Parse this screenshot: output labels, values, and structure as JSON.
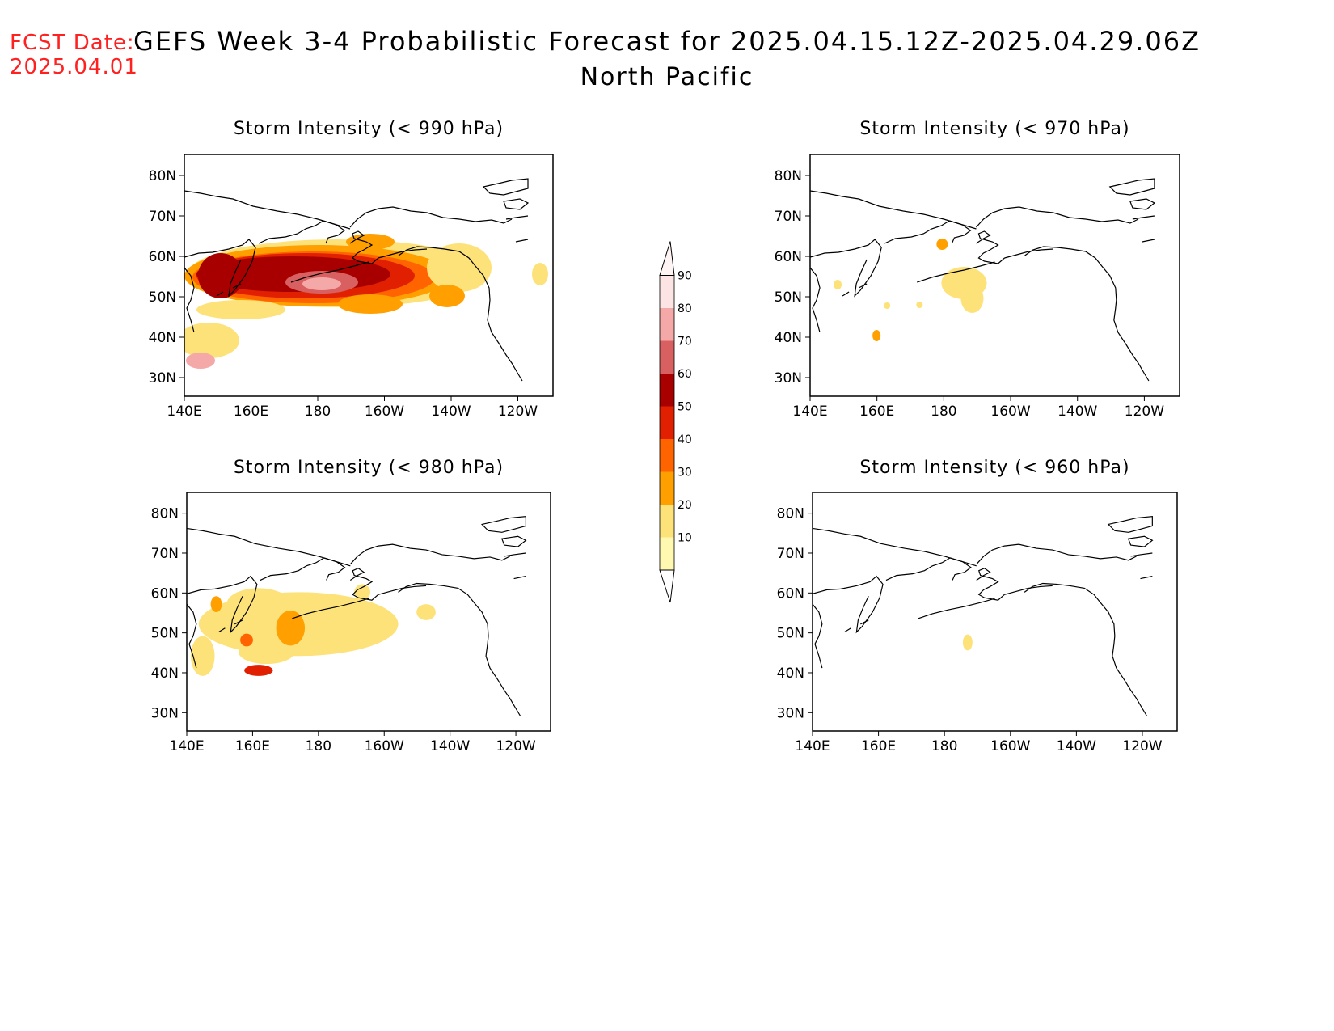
{
  "header": {
    "fcst_date_label": "FCST Date:",
    "fcst_date_value": "2025.04.01",
    "title": "GEFS Week 3-4 Probabilistic Forecast for 2025.04.15.12Z-2025.04.29.06Z",
    "subtitle": "North Pacific"
  },
  "panels": [
    {
      "id": "p990",
      "title": "Storm Intensity (< 990 hPa)"
    },
    {
      "id": "p970",
      "title": "Storm Intensity (< 970 hPa)"
    },
    {
      "id": "p980",
      "title": "Storm Intensity (< 980 hPa)"
    },
    {
      "id": "p960",
      "title": "Storm Intensity (< 960 hPa)"
    }
  ],
  "axes": {
    "lat_labels": [
      "80N",
      "70N",
      "60N",
      "50N",
      "40N",
      "30N"
    ],
    "lon_labels": [
      "140E",
      "160E",
      "180",
      "160W",
      "140W",
      "120W"
    ]
  },
  "colorbar": {
    "levels": [
      "10",
      "20",
      "30",
      "40",
      "50",
      "60",
      "70",
      "80",
      "90"
    ],
    "colors": [
      "#fff8b0",
      "#fde27a",
      "#ffa000",
      "#ff6400",
      "#e02000",
      "#a80000",
      "#d86060",
      "#f4a8a8",
      "#fde4e4"
    ]
  }
}
